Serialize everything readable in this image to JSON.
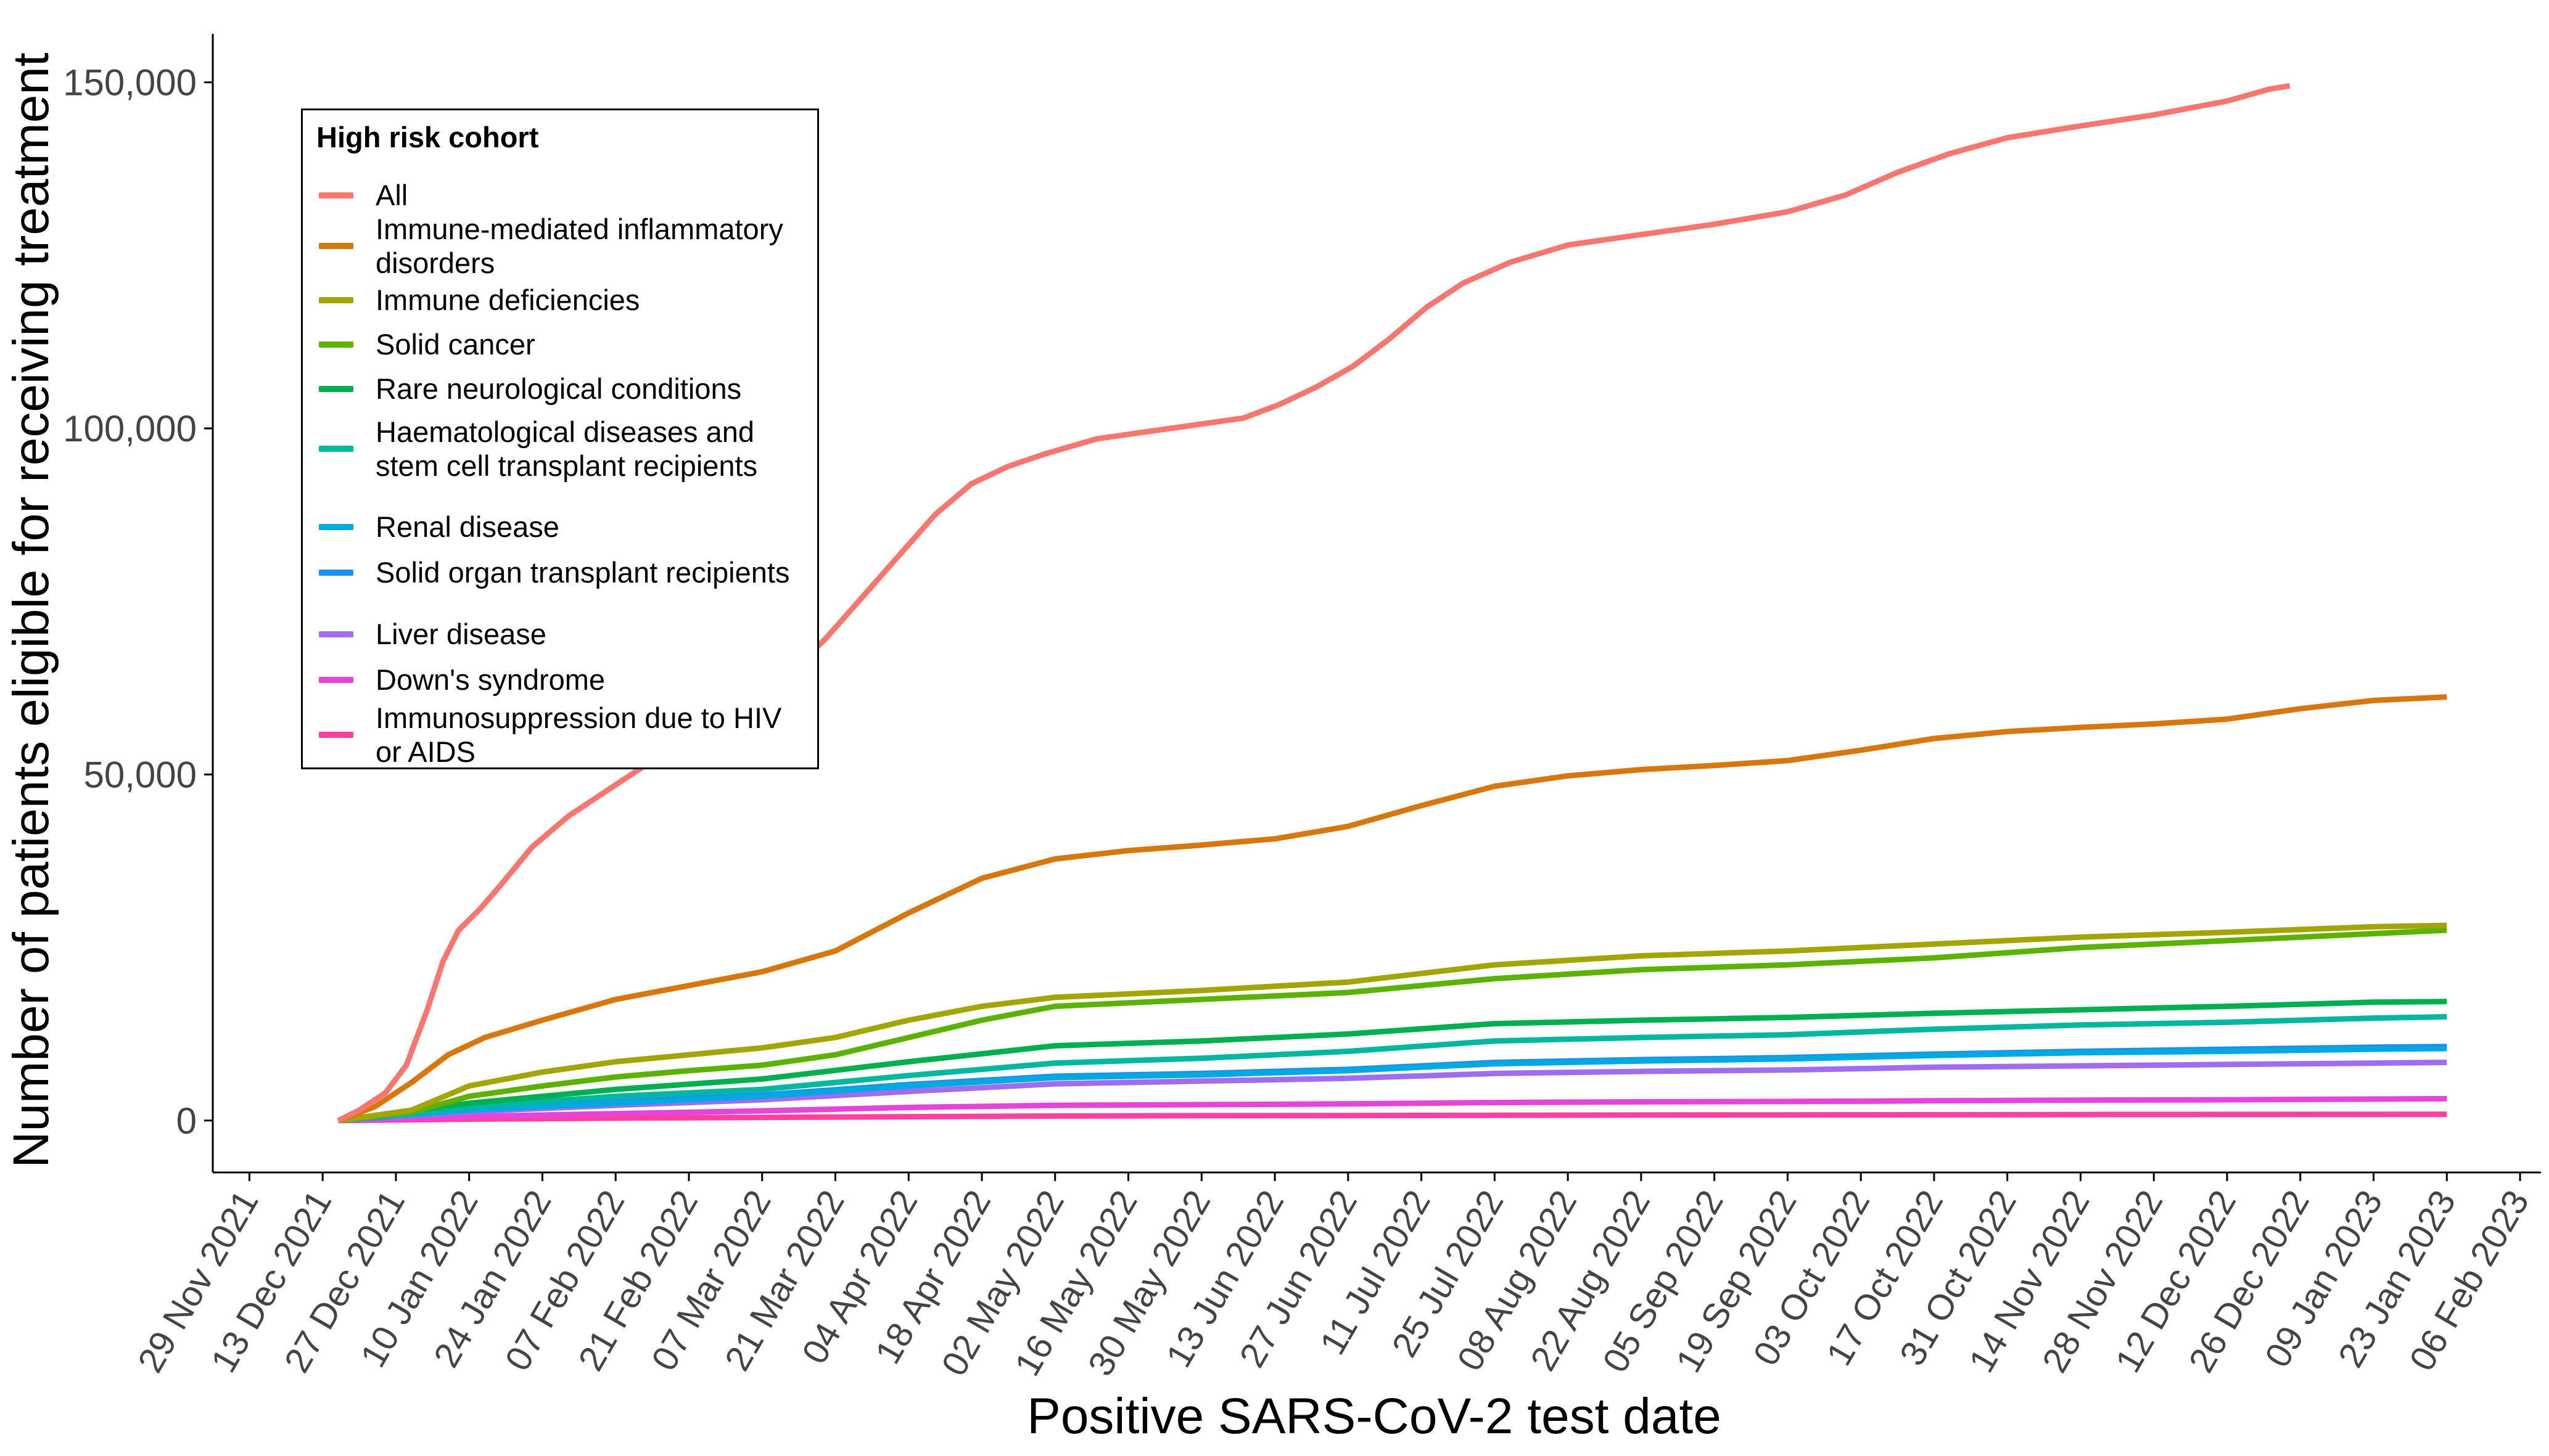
{
  "chart_data": {
    "type": "line",
    "xlabel": "Positive SARS-CoV-2 test date",
    "ylabel": "Number of patients eligible for receiving treatment",
    "x_ticks": [
      "29 Nov 2021",
      "13 Dec 2021",
      "27 Dec 2021",
      "10 Jan 2022",
      "24 Jan 2022",
      "07 Feb 2022",
      "21 Feb 2022",
      "07 Mar 2022",
      "21 Mar 2022",
      "04 Apr 2022",
      "18 Apr 2022",
      "02 May 2022",
      "16 May 2022",
      "30 May 2022",
      "13 Jun 2022",
      "27 Jun 2022",
      "11 Jul 2022",
      "25 Jul 2022",
      "08 Aug 2022",
      "22 Aug 2022",
      "05 Sep 2022",
      "19 Sep 2022",
      "03 Oct 2022",
      "17 Oct 2022",
      "31 Oct 2022",
      "14 Nov 2022",
      "28 Nov 2022",
      "12 Dec 2022",
      "26 Dec 2022",
      "09 Jan 2023",
      "23 Jan 2023",
      "06 Feb 2023"
    ],
    "y_ticks": [
      "0",
      "50,000",
      "100,000",
      "150,000"
    ],
    "y_tick_values": [
      0,
      50000,
      100000,
      150000
    ],
    "ylim": [
      -7500,
      157000
    ],
    "xlim": [
      "2021-11-22",
      "2023-02-10"
    ],
    "grid": false,
    "legend": {
      "title": "High risk cohort",
      "position": "top-left"
    },
    "series": [
      {
        "name": "All",
        "color": "#F8766D",
        "x": [
          "2021-12-16",
          "2021-12-20",
          "2021-12-25",
          "2021-12-29",
          "2022-01-02",
          "2022-01-05",
          "2022-01-08",
          "2022-01-12",
          "2022-01-16",
          "2022-01-22",
          "2022-01-29",
          "2022-02-05",
          "2022-02-12",
          "2022-02-19",
          "2022-02-26",
          "2022-03-05",
          "2022-03-12",
          "2022-03-19",
          "2022-03-26",
          "2022-04-02",
          "2022-04-09",
          "2022-04-16",
          "2022-04-23",
          "2022-04-30",
          "2022-05-10",
          "2022-05-24",
          "2022-06-07",
          "2022-06-14",
          "2022-06-21",
          "2022-06-28",
          "2022-07-05",
          "2022-07-12",
          "2022-07-19",
          "2022-07-28",
          "2022-08-08",
          "2022-08-22",
          "2022-09-05",
          "2022-09-19",
          "2022-09-30",
          "2022-10-10",
          "2022-10-20",
          "2022-10-31",
          "2022-11-14",
          "2022-11-28",
          "2022-12-12",
          "2022-12-20",
          "2022-12-24"
        ],
        "y": [
          0,
          1500,
          4000,
          8000,
          16000,
          23000,
          27500,
          30500,
          34000,
          39500,
          44000,
          47500,
          51000,
          54000,
          57500,
          61000,
          64500,
          69500,
          75500,
          81500,
          87500,
          92000,
          94500,
          96300,
          98500,
          100000,
          101500,
          103500,
          106000,
          109000,
          113000,
          117500,
          121000,
          124000,
          126500,
          128000,
          129500,
          131300,
          133700,
          137000,
          139700,
          142000,
          143700,
          145300,
          147300,
          149000,
          149500
        ]
      },
      {
        "name": "Immune-mediated inflammatory disorders",
        "color": "#D9770F",
        "x": [
          "2021-12-16",
          "2021-12-23",
          "2021-12-30",
          "2022-01-06",
          "2022-01-13",
          "2022-01-24",
          "2022-02-07",
          "2022-02-21",
          "2022-03-07",
          "2022-03-21",
          "2022-04-04",
          "2022-04-18",
          "2022-05-02",
          "2022-05-16",
          "2022-05-30",
          "2022-06-13",
          "2022-06-27",
          "2022-07-11",
          "2022-07-25",
          "2022-08-08",
          "2022-08-22",
          "2022-09-05",
          "2022-09-19",
          "2022-10-03",
          "2022-10-17",
          "2022-10-31",
          "2022-11-14",
          "2022-11-28",
          "2022-12-12",
          "2022-12-26",
          "2023-01-09",
          "2023-01-23"
        ],
        "y": [
          0,
          2000,
          5500,
          9500,
          12000,
          14500,
          17500,
          19500,
          21500,
          24500,
          30000,
          35000,
          37800,
          39000,
          39800,
          40700,
          42500,
          45500,
          48300,
          49800,
          50700,
          51300,
          52000,
          53500,
          55200,
          56200,
          56800,
          57300,
          58000,
          59500,
          60700,
          61200
        ]
      },
      {
        "name": "Immune deficiencies",
        "color": "#A3A500",
        "x": [
          "2021-12-16",
          "2021-12-30",
          "2022-01-10",
          "2022-01-24",
          "2022-02-07",
          "2022-02-21",
          "2022-03-07",
          "2022-03-21",
          "2022-04-04",
          "2022-04-18",
          "2022-05-02",
          "2022-05-30",
          "2022-06-27",
          "2022-07-25",
          "2022-08-22",
          "2022-09-19",
          "2022-10-17",
          "2022-11-14",
          "2022-12-12",
          "2023-01-09",
          "2023-01-23"
        ],
        "y": [
          0,
          1500,
          5000,
          7000,
          8500,
          9500,
          10500,
          12000,
          14500,
          16500,
          17800,
          18800,
          20000,
          22500,
          23800,
          24500,
          25500,
          26500,
          27200,
          28000,
          28200
        ]
      },
      {
        "name": "Solid cancer",
        "color": "#5BB300",
        "x": [
          "2021-12-16",
          "2021-12-30",
          "2022-01-10",
          "2022-01-24",
          "2022-02-07",
          "2022-02-21",
          "2022-03-07",
          "2022-03-21",
          "2022-04-04",
          "2022-04-18",
          "2022-05-02",
          "2022-05-30",
          "2022-06-27",
          "2022-07-25",
          "2022-08-22",
          "2022-09-19",
          "2022-10-17",
          "2022-11-14",
          "2022-12-12",
          "2023-01-09",
          "2023-01-23"
        ],
        "y": [
          0,
          1200,
          3500,
          5000,
          6300,
          7200,
          8000,
          9500,
          12000,
          14500,
          16500,
          17500,
          18500,
          20500,
          21800,
          22500,
          23500,
          25000,
          26000,
          27000,
          27500
        ]
      },
      {
        "name": "Rare neurological conditions",
        "color": "#00B050",
        "x": [
          "2021-12-16",
          "2022-01-10",
          "2022-02-07",
          "2022-03-07",
          "2022-04-04",
          "2022-05-02",
          "2022-05-30",
          "2022-06-27",
          "2022-07-25",
          "2022-08-22",
          "2022-09-19",
          "2022-10-17",
          "2022-11-14",
          "2022-12-12",
          "2023-01-09",
          "2023-01-23"
        ],
        "y": [
          0,
          2500,
          4500,
          6000,
          8500,
          10800,
          11500,
          12500,
          14000,
          14500,
          14900,
          15500,
          16000,
          16500,
          17100,
          17200
        ]
      },
      {
        "name": "Haematological diseases and stem cell transplant recipients",
        "color": "#00B7A0",
        "x": [
          "2021-12-16",
          "2022-01-10",
          "2022-02-07",
          "2022-03-07",
          "2022-04-04",
          "2022-05-02",
          "2022-05-30",
          "2022-06-27",
          "2022-07-25",
          "2022-08-22",
          "2022-09-19",
          "2022-10-17",
          "2022-11-14",
          "2022-12-12",
          "2023-01-09",
          "2023-01-23"
        ],
        "y": [
          0,
          2000,
          3500,
          4500,
          6500,
          8300,
          9000,
          10000,
          11500,
          12000,
          12400,
          13200,
          13800,
          14200,
          14800,
          15000
        ]
      },
      {
        "name": "Renal disease",
        "color": "#00A9E0",
        "x": [
          "2021-12-16",
          "2022-01-10",
          "2022-02-07",
          "2022-03-07",
          "2022-04-04",
          "2022-05-02",
          "2022-05-30",
          "2022-06-27",
          "2022-07-25",
          "2022-08-22",
          "2022-09-19",
          "2022-10-17",
          "2022-11-14",
          "2022-12-12",
          "2023-01-09",
          "2023-01-23"
        ],
        "y": [
          0,
          1500,
          2500,
          3500,
          5000,
          6200,
          6600,
          7200,
          8200,
          8600,
          8900,
          9400,
          9800,
          10000,
          10300,
          10400
        ]
      },
      {
        "name": "Solid organ transplant recipients",
        "color": "#1F8EF1",
        "x": [
          "2021-12-16",
          "2022-01-10",
          "2022-02-07",
          "2022-03-07",
          "2022-04-04",
          "2022-05-02",
          "2022-05-30",
          "2022-06-27",
          "2022-07-25",
          "2022-08-22",
          "2022-09-19",
          "2022-10-17",
          "2022-11-14",
          "2022-12-12",
          "2023-01-09",
          "2023-01-23"
        ],
        "y": [
          0,
          1600,
          2700,
          3700,
          5200,
          6400,
          6800,
          7400,
          8400,
          8800,
          9100,
          9600,
          10000,
          10300,
          10600,
          10700
        ]
      },
      {
        "name": "Liver disease",
        "color": "#A06CF0",
        "x": [
          "2021-12-16",
          "2022-01-10",
          "2022-02-07",
          "2022-03-07",
          "2022-04-04",
          "2022-05-02",
          "2022-05-30",
          "2022-06-27",
          "2022-07-25",
          "2022-08-22",
          "2022-09-19",
          "2022-10-17",
          "2022-11-14",
          "2022-12-12",
          "2023-01-09",
          "2023-01-23"
        ],
        "y": [
          0,
          1300,
          2200,
          3000,
          4200,
          5300,
          5700,
          6100,
          6800,
          7100,
          7300,
          7700,
          7900,
          8100,
          8300,
          8400
        ]
      },
      {
        "name": "Down's syndrome",
        "color": "#E645DC",
        "x": [
          "2021-12-16",
          "2022-01-10",
          "2022-02-07",
          "2022-03-07",
          "2022-04-04",
          "2022-05-02",
          "2022-05-30",
          "2022-06-27",
          "2022-07-25",
          "2022-08-22",
          "2022-09-19",
          "2022-10-17",
          "2022-11-14",
          "2022-12-12",
          "2023-01-09",
          "2023-01-23"
        ],
        "y": [
          0,
          600,
          1000,
          1400,
          1900,
          2200,
          2300,
          2400,
          2600,
          2700,
          2750,
          2850,
          2950,
          3000,
          3100,
          3150
        ]
      },
      {
        "name": "Immunosuppression due to HIV or AIDS",
        "color": "#FF40A0",
        "x": [
          "2021-12-16",
          "2022-01-10",
          "2022-02-07",
          "2022-03-07",
          "2022-04-04",
          "2022-05-02",
          "2022-05-30",
          "2022-06-27",
          "2022-07-25",
          "2022-08-22",
          "2022-09-19",
          "2022-10-17",
          "2022-11-14",
          "2022-12-12",
          "2023-01-09",
          "2023-01-23"
        ],
        "y": [
          0,
          200,
          350,
          450,
          550,
          650,
          700,
          720,
          760,
          790,
          810,
          840,
          860,
          880,
          900,
          910
        ]
      }
    ]
  }
}
